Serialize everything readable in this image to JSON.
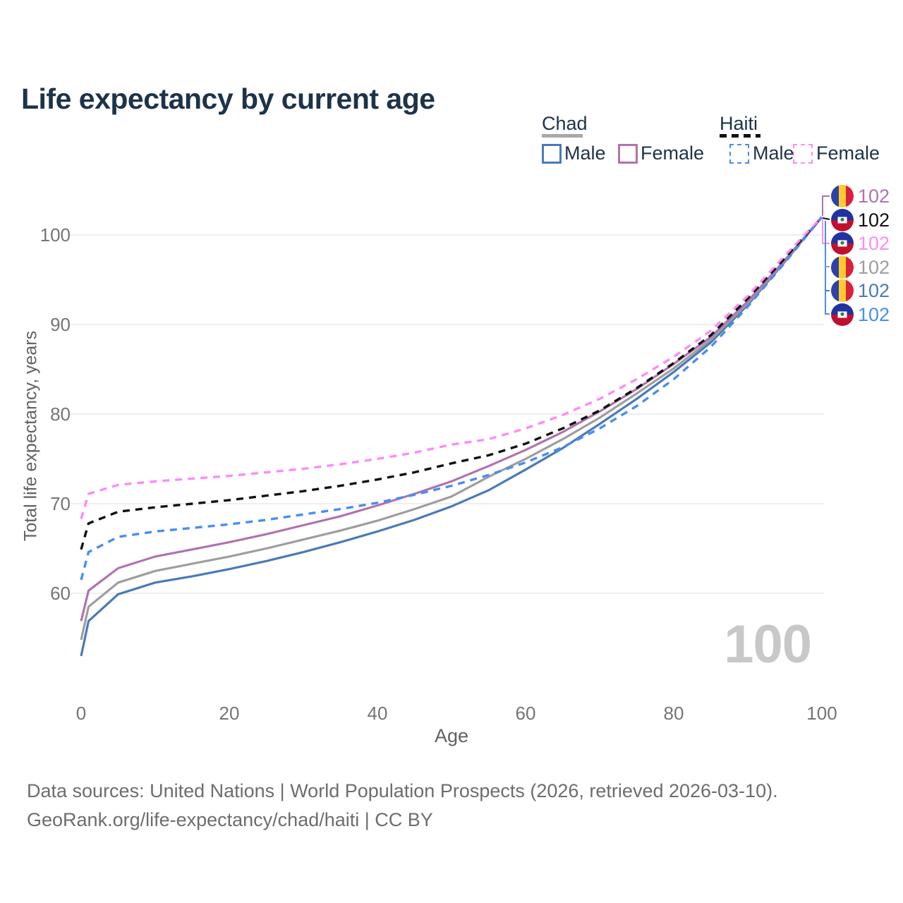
{
  "title": "Life expectancy by current age",
  "legend": {
    "chad": {
      "label": "Chad",
      "male_label": "Male",
      "female_label": "Female"
    },
    "haiti": {
      "label": "Haiti",
      "male_label": "Male",
      "female_label": "Female"
    }
  },
  "chart_data": {
    "type": "line",
    "title": "Life expectancy by current age",
    "xlabel": "Age",
    "ylabel": "Total life expectancy, years",
    "x_ticks": [
      0,
      20,
      40,
      60,
      80,
      100
    ],
    "y_ticks": [
      60,
      70,
      80,
      90,
      100
    ],
    "xlim": [
      0,
      100
    ],
    "ylim": [
      52,
      105
    ],
    "grid": "horizontal",
    "watermark": "100",
    "ages": [
      0,
      1,
      5,
      10,
      15,
      20,
      25,
      30,
      35,
      40,
      45,
      50,
      55,
      60,
      65,
      70,
      75,
      80,
      85,
      90,
      95,
      100
    ],
    "series": [
      {
        "id": "chad_male",
        "name": "Chad Male",
        "country": "Chad",
        "style": "solid",
        "color": "#4a7ab8",
        "values": [
          53.0,
          56.9,
          59.9,
          61.2,
          61.9,
          62.7,
          63.6,
          64.6,
          65.7,
          66.9,
          68.2,
          69.7,
          71.5,
          73.8,
          76.2,
          78.9,
          81.7,
          84.7,
          88.0,
          92.2,
          97.0,
          102.0
        ]
      },
      {
        "id": "chad_total",
        "name": "Chad Total",
        "country": "Chad",
        "style": "solid",
        "color": "#9e9e9e",
        "values": [
          54.8,
          58.5,
          61.2,
          62.5,
          63.3,
          64.1,
          65.0,
          66.0,
          67.0,
          68.1,
          69.4,
          70.8,
          73.0,
          75.0,
          77.2,
          79.6,
          82.3,
          85.1,
          88.3,
          92.4,
          97.1,
          102.0
        ]
      },
      {
        "id": "chad_female",
        "name": "Chad Female",
        "country": "Chad",
        "style": "solid",
        "color": "#b073ae",
        "values": [
          56.9,
          60.3,
          62.8,
          64.1,
          64.9,
          65.7,
          66.6,
          67.6,
          68.6,
          69.8,
          71.1,
          72.5,
          74.2,
          76.0,
          78.0,
          80.3,
          82.8,
          85.6,
          88.6,
          92.6,
          97.2,
          102.0
        ]
      },
      {
        "id": "haiti_male",
        "name": "Haiti Male",
        "country": "Haiti",
        "style": "dashed",
        "color": "#4a8df0",
        "values": [
          61.5,
          64.6,
          66.3,
          66.9,
          67.3,
          67.7,
          68.2,
          68.8,
          69.4,
          70.1,
          71.0,
          72.0,
          73.2,
          74.6,
          76.3,
          78.4,
          80.9,
          83.9,
          87.5,
          92.0,
          96.9,
          102.0
        ]
      },
      {
        "id": "haiti_total",
        "name": "Haiti Total",
        "country": "Haiti",
        "style": "dashed",
        "color": "#111111",
        "values": [
          64.9,
          67.8,
          69.1,
          69.6,
          70.0,
          70.4,
          70.9,
          71.4,
          72.0,
          72.7,
          73.5,
          74.5,
          75.4,
          76.7,
          78.4,
          80.4,
          82.9,
          85.7,
          88.8,
          92.9,
          97.4,
          102.0
        ]
      },
      {
        "id": "haiti_female",
        "name": "Haiti Female",
        "country": "Haiti",
        "style": "dashed",
        "color": "#fb8df5",
        "values": [
          68.3,
          71.1,
          72.1,
          72.5,
          72.8,
          73.1,
          73.5,
          73.9,
          74.4,
          75.0,
          75.7,
          76.6,
          77.2,
          78.4,
          79.9,
          81.7,
          83.9,
          86.4,
          89.3,
          93.2,
          97.7,
          102.0
        ]
      }
    ],
    "end_labels": [
      {
        "value": "102",
        "series": "chad_female",
        "flag": "chad",
        "color": "#b073ae"
      },
      {
        "value": "102",
        "series": "haiti_total",
        "flag": "haiti",
        "color": "#111111"
      },
      {
        "value": "102",
        "series": "haiti_female",
        "flag": "haiti",
        "color": "#fb8df5"
      },
      {
        "value": "102",
        "series": "chad_total",
        "flag": "chad",
        "color": "#9e9e9e"
      },
      {
        "value": "102",
        "series": "chad_male",
        "flag": "chad",
        "color": "#4a7ab8"
      },
      {
        "value": "102",
        "series": "haiti_male",
        "flag": "haiti",
        "color": "#4a8df0"
      }
    ],
    "legend_position": "top-right"
  },
  "colors": {
    "title": "#1d3349",
    "grid": "#e8e8e8",
    "axis_text": "#757575",
    "watermark": "#c8c8c8",
    "footer_text": "#6d6d6d"
  },
  "footer": {
    "line1": "Data sources: United Nations | World Population Prospects (2026, retrieved 2026-03-10).",
    "line2": "GeoRank.org/life-expectancy/chad/haiti | CC BY"
  }
}
